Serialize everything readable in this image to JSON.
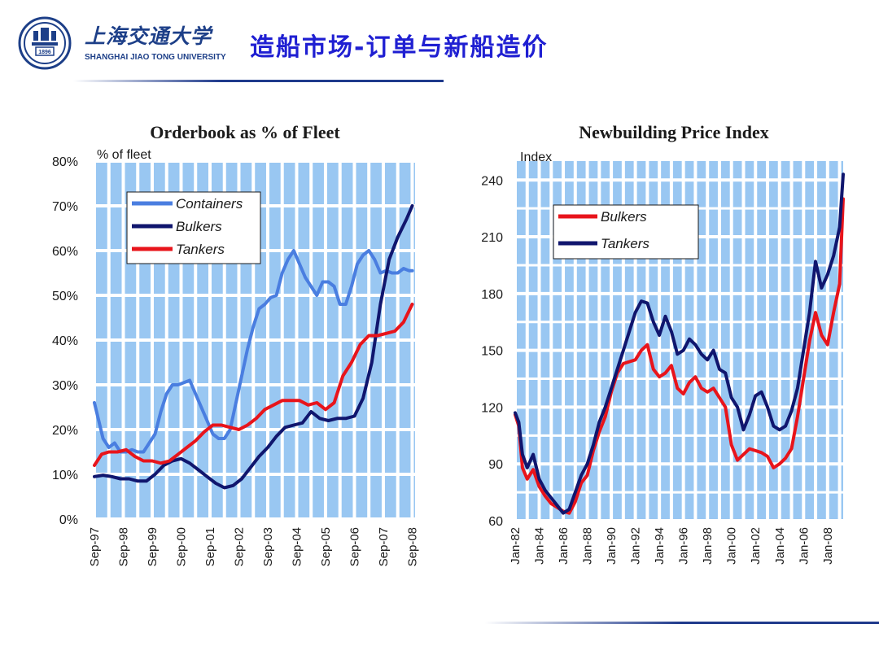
{
  "header": {
    "logo_cn": "上海交通大学",
    "logo_en": "SHANGHAI  JIAO TONG  UNIVERSITY",
    "logo_year": "1896",
    "title": "造船市场-订单与新船造价"
  },
  "colors": {
    "plot_bg": "#99c7f2",
    "grid": "#ffffff",
    "containers": "#4a7ee0",
    "bulkers_navy": "#10166e",
    "tankers_red": "#e8141b",
    "title_blue": "#1f1fd2"
  },
  "chart_data": [
    {
      "type": "line",
      "title": "Orderbook as % of Fleet",
      "ylabel": "% of fleet",
      "ylim": [
        0,
        80
      ],
      "yticks": [
        "0%",
        "10%",
        "20%",
        "30%",
        "40%",
        "50%",
        "60%",
        "70%",
        "80%"
      ],
      "yvalues": [
        0,
        10,
        20,
        30,
        40,
        50,
        60,
        70,
        80
      ],
      "xlim": [
        0,
        11.1
      ],
      "xticks": [
        "Sep-97",
        "Sep-98",
        "Sep-99",
        "Sep-00",
        "Sep-01",
        "Sep-02",
        "Sep-03",
        "Sep-04",
        "Sep-05",
        "Sep-06",
        "Sep-07",
        "Sep-08"
      ],
      "legend_position": "top-left",
      "series": [
        {
          "name": "Containers",
          "color": "#4a7ee0",
          "x": [
            0,
            0.15,
            0.3,
            0.5,
            0.7,
            0.9,
            1.1,
            1.3,
            1.5,
            1.7,
            1.9,
            2.1,
            2.3,
            2.5,
            2.7,
            2.9,
            3.1,
            3.3,
            3.5,
            3.7,
            3.9,
            4.1,
            4.3,
            4.5,
            4.7,
            4.9,
            5.1,
            5.3,
            5.5,
            5.7,
            5.9,
            6.1,
            6.3,
            6.5,
            6.7,
            6.9,
            7.1,
            7.3,
            7.5,
            7.7,
            7.9,
            8.1,
            8.3,
            8.5,
            8.7,
            8.9,
            9.1,
            9.3,
            9.5,
            9.7,
            9.9,
            10.1,
            10.3,
            10.5,
            10.7,
            10.9,
            11.0
          ],
          "y": [
            26,
            22,
            18,
            16,
            17,
            15,
            15,
            15.5,
            15,
            15,
            17,
            19,
            24,
            28,
            30,
            30,
            30.5,
            31,
            28,
            25,
            22,
            19,
            18,
            18,
            20,
            26,
            32,
            38,
            43,
            47,
            48,
            49.5,
            50,
            55,
            58,
            60,
            57,
            54,
            52,
            50,
            53,
            53,
            52,
            48,
            48,
            52,
            57,
            59,
            60,
            58,
            55,
            55.5,
            55,
            55,
            56,
            55.5,
            55.5
          ]
        },
        {
          "name": "Bulkers",
          "color": "#10166e",
          "x": [
            0,
            0.3,
            0.6,
            0.9,
            1.2,
            1.5,
            1.8,
            2.1,
            2.4,
            2.7,
            3.0,
            3.3,
            3.6,
            3.9,
            4.2,
            4.5,
            4.8,
            5.1,
            5.4,
            5.7,
            6.0,
            6.3,
            6.6,
            6.9,
            7.2,
            7.5,
            7.8,
            8.1,
            8.4,
            8.7,
            9.0,
            9.3,
            9.6,
            9.9,
            10.2,
            10.5,
            10.8,
            11.0
          ],
          "y": [
            9.5,
            9.8,
            9.5,
            9,
            9,
            8.5,
            8.5,
            10,
            12,
            13,
            13.5,
            12.5,
            11,
            9.5,
            8,
            7,
            7.5,
            9,
            11.5,
            14,
            16,
            18.5,
            20.5,
            21,
            21.5,
            24,
            22.5,
            22,
            22.5,
            22.5,
            23,
            27,
            35,
            48,
            58,
            63,
            67,
            70
          ]
        },
        {
          "name": "Tankers",
          "color": "#e8141b",
          "x": [
            0,
            0.25,
            0.5,
            0.8,
            1.1,
            1.4,
            1.7,
            2.0,
            2.3,
            2.6,
            2.9,
            3.2,
            3.5,
            3.8,
            4.1,
            4.4,
            4.7,
            5.0,
            5.3,
            5.6,
            5.9,
            6.2,
            6.5,
            6.8,
            7.1,
            7.4,
            7.7,
            8.0,
            8.3,
            8.6,
            8.9,
            9.2,
            9.5,
            9.8,
            10.1,
            10.4,
            10.7,
            11.0
          ],
          "y": [
            12,
            14.5,
            15,
            15,
            15.5,
            14,
            13,
            13,
            12.5,
            13,
            14.5,
            16,
            17.5,
            19.5,
            21,
            21,
            20.5,
            20,
            21,
            22.5,
            24.5,
            25.5,
            26.5,
            26.5,
            26.5,
            25.5,
            26,
            24.5,
            26,
            32,
            35,
            39,
            41,
            41,
            41.5,
            42,
            44,
            48
          ]
        }
      ]
    },
    {
      "type": "line",
      "title": "Newbuilding Price Index",
      "ylabel": "Index",
      "ylim": [
        60,
        250
      ],
      "yticks": [
        "60",
        "90",
        "120",
        "150",
        "180",
        "210",
        "240"
      ],
      "yvalues": [
        60,
        90,
        120,
        150,
        180,
        210,
        240
      ],
      "xlim": [
        0,
        27.3
      ],
      "xticks": [
        "Jan-82",
        "Jan-84",
        "Jan-86",
        "Jan-88",
        "Jan-90",
        "Jan-92",
        "Jan-94",
        "Jan-96",
        "Jan-98",
        "Jan-00",
        "Jan-02",
        "Jan-04",
        "Jan-06",
        "Jan-08"
      ],
      "legend_position": "top-right",
      "series": [
        {
          "name": "Bulkers",
          "color": "#e8141b",
          "x": [
            0,
            0.3,
            0.6,
            1.0,
            1.5,
            2.0,
            2.5,
            3.0,
            3.5,
            4.0,
            4.5,
            5.0,
            5.5,
            6.0,
            6.5,
            7.0,
            7.5,
            8.0,
            8.5,
            9.0,
            9.5,
            10.0,
            10.5,
            11.0,
            11.5,
            12.0,
            12.5,
            13.0,
            13.5,
            14.0,
            14.5,
            15.0,
            15.5,
            16.0,
            16.5,
            17.0,
            17.5,
            18.0,
            18.5,
            19.0,
            19.5,
            20.0,
            20.5,
            21.0,
            21.5,
            22.0,
            22.5,
            23.0,
            23.5,
            24.0,
            24.5,
            25.0,
            25.5,
            26.0,
            26.5,
            27.0,
            27.3
          ],
          "y": [
            116,
            110,
            88,
            82,
            87,
            78,
            73,
            69,
            67,
            65,
            64,
            70,
            80,
            84,
            97,
            107,
            115,
            128,
            138,
            143,
            144,
            145,
            150,
            153,
            140,
            136,
            138,
            142,
            130,
            127,
            133,
            136,
            130,
            128,
            130,
            125,
            120,
            100,
            92,
            95,
            98,
            97,
            96,
            94,
            88,
            90,
            93,
            98,
            115,
            135,
            155,
            170,
            158,
            153,
            170,
            185,
            230
          ]
        },
        {
          "name": "Tankers",
          "color": "#10166e",
          "x": [
            0,
            0.3,
            0.6,
            1.0,
            1.5,
            2.0,
            2.5,
            3.0,
            3.5,
            4.0,
            4.5,
            5.0,
            5.5,
            6.0,
            6.5,
            7.0,
            7.5,
            8.0,
            8.5,
            9.0,
            9.5,
            10.0,
            10.5,
            11.0,
            11.5,
            12.0,
            12.5,
            13.0,
            13.5,
            14.0,
            14.5,
            15.0,
            15.5,
            16.0,
            16.5,
            17.0,
            17.5,
            18.0,
            18.5,
            19.0,
            19.5,
            20.0,
            20.5,
            21.0,
            21.5,
            22.0,
            22.5,
            23.0,
            23.5,
            24.0,
            24.5,
            25.0,
            25.5,
            26.0,
            26.5,
            27.0,
            27.3
          ],
          "y": [
            117,
            112,
            95,
            88,
            95,
            82,
            76,
            72,
            68,
            64,
            66,
            75,
            84,
            90,
            100,
            112,
            120,
            130,
            140,
            150,
            160,
            170,
            176,
            175,
            165,
            158,
            168,
            160,
            148,
            150,
            156,
            153,
            148,
            145,
            150,
            140,
            138,
            125,
            120,
            108,
            116,
            126,
            128,
            120,
            110,
            108,
            110,
            118,
            130,
            150,
            170,
            197,
            183,
            190,
            200,
            215,
            243
          ]
        }
      ]
    }
  ]
}
